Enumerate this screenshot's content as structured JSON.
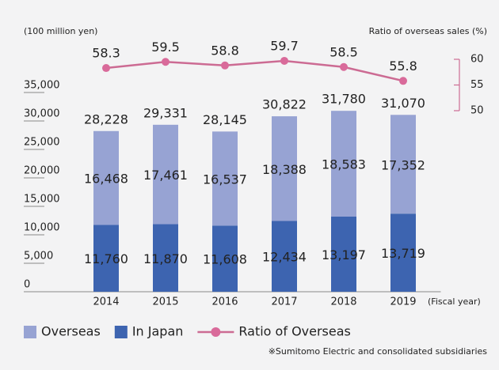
{
  "chart_data": {
    "type": "bar",
    "y_axis_label": "(100 million yen)",
    "y2_axis_label": "Ratio of overseas sales (%)",
    "x_axis_label": "(Fiscal year)",
    "note": "※Sumitomo Electric and consolidated subsidiaries",
    "categories": [
      "2014",
      "2015",
      "2016",
      "2017",
      "2018",
      "2019"
    ],
    "series": [
      {
        "name": "Overseas",
        "type": "bar",
        "color": "#97a3d3",
        "values": [
          16468,
          17461,
          16537,
          18388,
          18583,
          17352
        ],
        "value_labels": [
          "16,468",
          "17,461",
          "16,537",
          "18,388",
          "18,583",
          "17,352"
        ]
      },
      {
        "name": "In Japan",
        "type": "bar",
        "color": "#3d64b0",
        "values": [
          11760,
          11870,
          11608,
          12434,
          13197,
          13719
        ],
        "value_labels": [
          "11,760",
          "11,870",
          "11,608",
          "12,434",
          "13,197",
          "13,719"
        ]
      },
      {
        "name": "Ratio of Overseas",
        "type": "line",
        "axis": "y2",
        "color": "#cc6b93",
        "values": [
          58.3,
          59.5,
          58.8,
          59.7,
          58.5,
          55.8
        ]
      }
    ],
    "total_labels": [
      "28,228",
      "29,331",
      "28,145",
      "30,822",
      "31,780",
      "31,070"
    ],
    "ylim": [
      0,
      35000
    ],
    "yticks": [
      0,
      {
        "value": 5000,
        "label": "5,000"
      },
      {
        "value": 10000,
        "label": "10,000"
      },
      {
        "value": 15000,
        "label": "15,000"
      },
      {
        "value": 20000,
        "label": "20,000"
      },
      {
        "value": 25000,
        "label": "25,000"
      },
      {
        "value": 30000,
        "label": "30,000"
      },
      {
        "value": 35000,
        "label": "35,000"
      }
    ],
    "y2lim": [
      50,
      60
    ],
    "y2ticks": [
      50,
      55,
      60
    ]
  }
}
